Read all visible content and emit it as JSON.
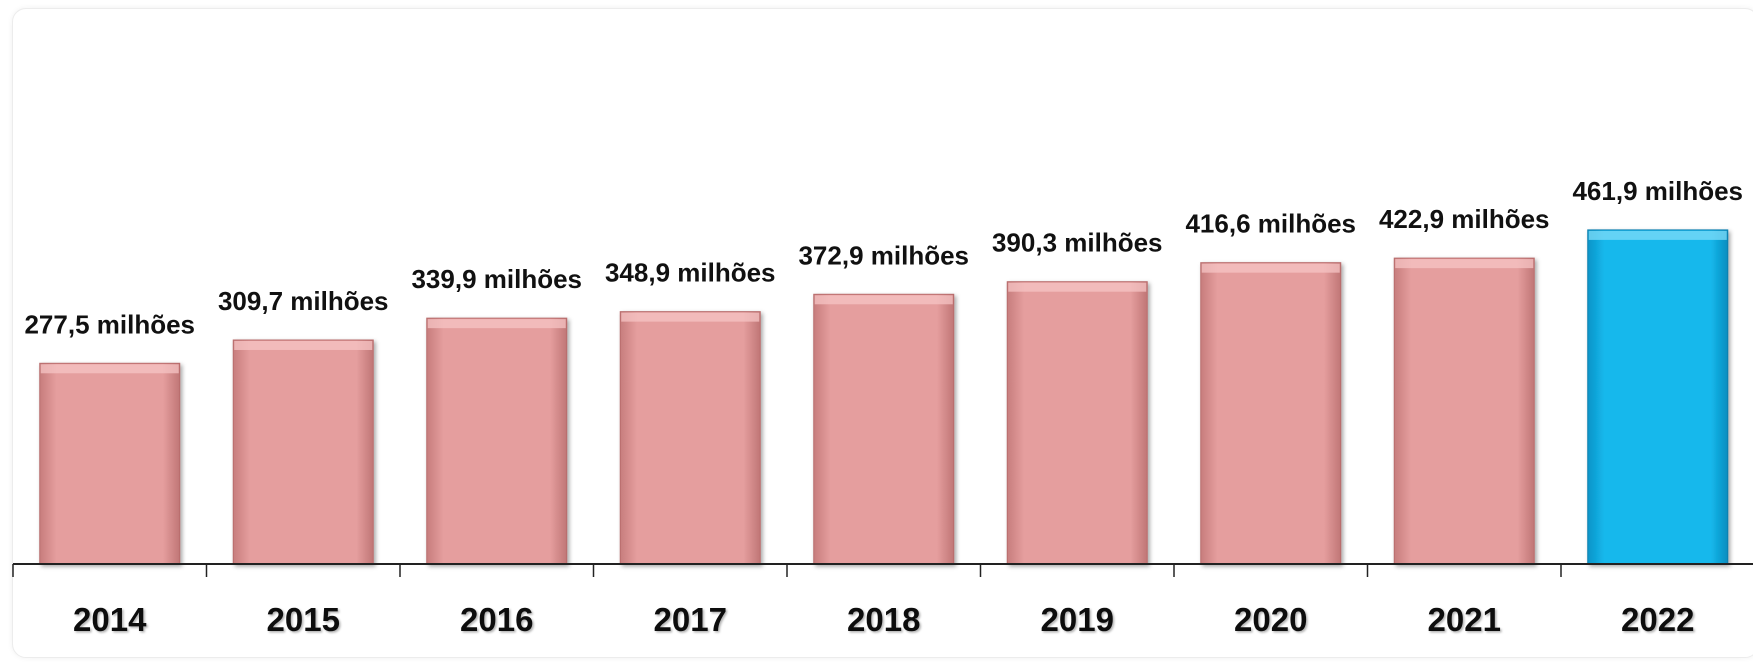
{
  "chart_data": {
    "type": "bar",
    "categories": [
      "2014",
      "2015",
      "2016",
      "2017",
      "2018",
      "2019",
      "2020",
      "2021",
      "2022"
    ],
    "values": [
      277.5,
      309.7,
      339.9,
      348.9,
      372.9,
      390.3,
      416.6,
      422.9,
      461.9
    ],
    "data_labels": [
      "277,5 milhões",
      "309,7 milhões",
      "339,9 milhões",
      "348,9 milhões",
      "372,9 milhões",
      "390,3 milhões",
      "416,6 milhões",
      "422,9 milhões",
      "461,9 milhões"
    ],
    "title": "",
    "xlabel": "",
    "ylabel": "",
    "grid": false,
    "legend": "none",
    "colors": {
      "default_bar": "#e59e9e",
      "highlight_bar": "#13b8ec",
      "axis": "#222222"
    },
    "highlight_index": 8
  }
}
